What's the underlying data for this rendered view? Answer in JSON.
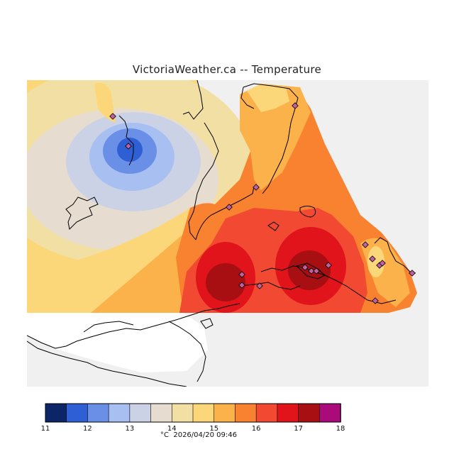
{
  "title": "VictoriaWeather.ca  --  Temperature",
  "legend": {
    "colors": [
      "#0b2566",
      "#2f5fd4",
      "#6a8fe6",
      "#a8bff2",
      "#ccd2e6",
      "#e6ddd0",
      "#f2dfa4",
      "#fcd77a",
      "#fbb24a",
      "#f8822f",
      "#f24a32",
      "#e0141a",
      "#a80f12",
      "#ab0a7a"
    ],
    "ticks": [
      "11",
      "12",
      "13",
      "14",
      "15",
      "16",
      "17",
      "18"
    ],
    "unit": "°C",
    "timestamp": "2026/04/20 09:46"
  },
  "palette": {
    "land_outside": "#f0f0f0",
    "water": "#ffffff",
    "coast": "#000000",
    "station": "#c060a0"
  },
  "map": {
    "stations_count_visible": 18
  }
}
